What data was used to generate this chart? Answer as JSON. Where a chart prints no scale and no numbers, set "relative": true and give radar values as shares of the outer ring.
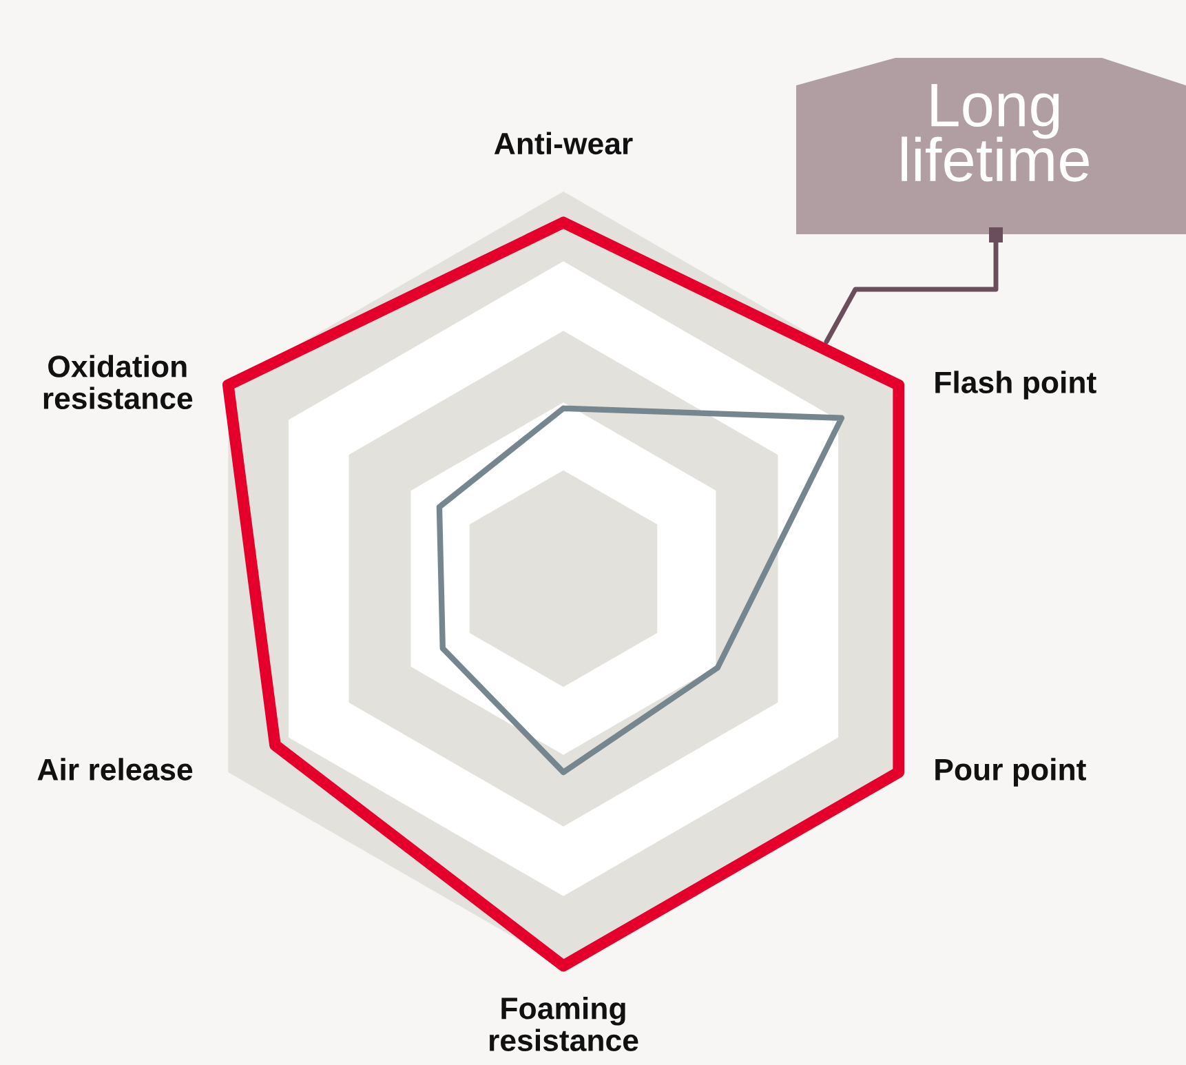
{
  "chart_data": {
    "type": "radar",
    "relative": true,
    "categories": [
      "Anti-wear",
      "Flash point",
      "Pour point",
      "Foaming\nresistance",
      "Air release",
      "Oxidation\nresistance"
    ],
    "series": [
      {
        "color": "#e4002b",
        "values": [
          0.92,
          1.0,
          1.0,
          1.0,
          0.86,
          1.0
        ]
      },
      {
        "color": "#76868e",
        "values": [
          0.44,
          0.83,
          0.46,
          0.5,
          0.36,
          0.37
        ]
      }
    ],
    "annotations": [
      "Long\nlifetime"
    ]
  }
}
